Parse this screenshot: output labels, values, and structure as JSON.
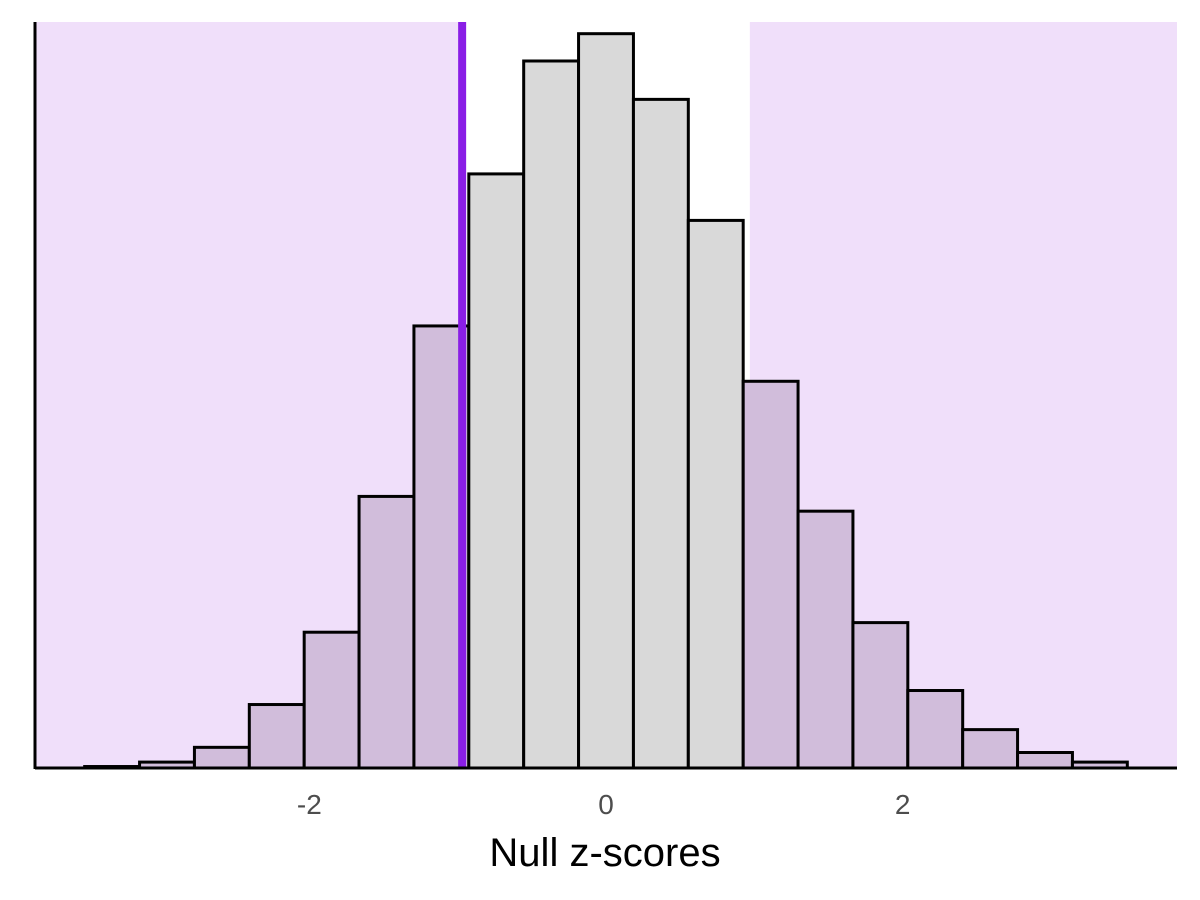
{
  "chart_data": {
    "type": "bar",
    "xlabel": "Null z-scores",
    "ylabel": "",
    "xlim": [
      -3.85,
      3.85
    ],
    "ylim": [
      0,
      1
    ],
    "grid": false,
    "x_ticks": [
      {
        "value": -2,
        "label": "-2"
      },
      {
        "value": 0,
        "label": "0"
      },
      {
        "value": 2,
        "label": "2"
      }
    ],
    "bin_width": 0.37,
    "bin_centers": [
      -3.33,
      -2.96,
      -2.59,
      -2.22,
      -1.85,
      -1.48,
      -1.11,
      -0.74,
      -0.37,
      0.0,
      0.37,
      0.74,
      1.11,
      1.48,
      1.85,
      2.22,
      2.59,
      2.96,
      3.33
    ],
    "values": [
      0.002,
      0.008,
      0.028,
      0.086,
      0.184,
      0.368,
      0.599,
      0.805,
      0.958,
      0.995,
      0.906,
      0.742,
      0.524,
      0.348,
      0.197,
      0.105,
      0.052,
      0.021,
      0.008
    ],
    "bar_highlight": "rejection-region",
    "threshold_value": -0.97,
    "rejection_region": {
      "lower": -0.97,
      "upper": 0.97
    },
    "colors": {
      "bar_inside": "#d9d9d9",
      "bar_outside": "#d1bddb",
      "shade": "#f0dffa",
      "threshold_line": "#8a1ee6",
      "bar_stroke": "#000000"
    }
  }
}
